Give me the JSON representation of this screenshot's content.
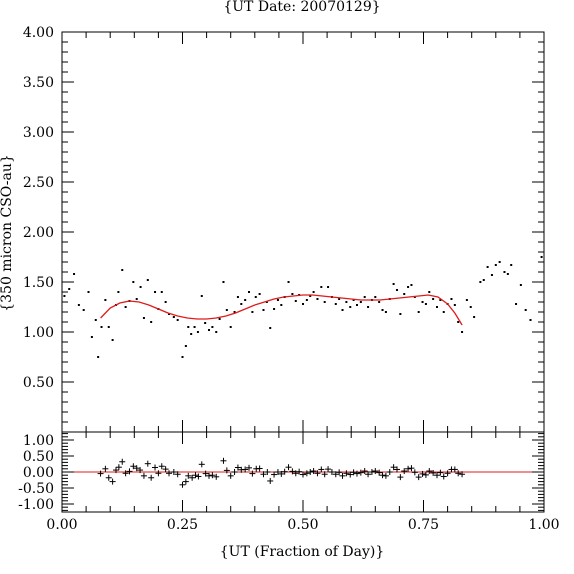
{
  "chart_data": {
    "type": "scatter",
    "title": "{UT Date: 20070129}",
    "xlabel": "{UT (Fraction of Day)}",
    "ylabel": "{350 micron CSO-au}",
    "xlim": [
      0,
      1
    ],
    "top_panel": {
      "ylim": [
        0.0,
        4.0
      ],
      "yticks": [
        "0.50",
        "1.00",
        "1.50",
        "2.00",
        "2.50",
        "3.00",
        "3.50",
        "4.00"
      ],
      "points": [
        [
          0.005,
          1.36
        ],
        [
          0.015,
          1.43
        ],
        [
          0.025,
          1.58
        ],
        [
          0.035,
          1.27
        ],
        [
          0.045,
          1.22
        ],
        [
          0.055,
          1.4
        ],
        [
          0.062,
          0.95
        ],
        [
          0.07,
          1.12
        ],
        [
          0.075,
          0.75
        ],
        [
          0.082,
          1.05
        ],
        [
          0.09,
          1.32
        ],
        [
          0.097,
          1.05
        ],
        [
          0.105,
          0.92
        ],
        [
          0.112,
          1.27
        ],
        [
          0.117,
          1.4
        ],
        [
          0.125,
          1.62
        ],
        [
          0.132,
          1.25
        ],
        [
          0.14,
          1.31
        ],
        [
          0.148,
          1.5
        ],
        [
          0.155,
          1.33
        ],
        [
          0.163,
          1.45
        ],
        [
          0.17,
          1.14
        ],
        [
          0.178,
          1.52
        ],
        [
          0.185,
          1.1
        ],
        [
          0.193,
          1.4
        ],
        [
          0.2,
          1.23
        ],
        [
          0.207,
          1.4
        ],
        [
          0.215,
          1.3
        ],
        [
          0.222,
          1.18
        ],
        [
          0.232,
          1.15
        ],
        [
          0.24,
          1.12
        ],
        [
          0.25,
          0.75
        ],
        [
          0.257,
          0.86
        ],
        [
          0.262,
          1.05
        ],
        [
          0.268,
          0.98
        ],
        [
          0.275,
          1.05
        ],
        [
          0.282,
          1.0
        ],
        [
          0.29,
          1.36
        ],
        [
          0.297,
          1.09
        ],
        [
          0.305,
          1.02
        ],
        [
          0.312,
          1.05
        ],
        [
          0.32,
          1.0
        ],
        [
          0.327,
          1.13
        ],
        [
          0.335,
          1.5
        ],
        [
          0.342,
          1.22
        ],
        [
          0.35,
          1.05
        ],
        [
          0.358,
          1.2
        ],
        [
          0.365,
          1.35
        ],
        [
          0.372,
          1.28
        ],
        [
          0.38,
          1.32
        ],
        [
          0.388,
          1.4
        ],
        [
          0.395,
          1.2
        ],
        [
          0.402,
          1.35
        ],
        [
          0.41,
          1.38
        ],
        [
          0.418,
          1.22
        ],
        [
          0.425,
          1.3
        ],
        [
          0.432,
          1.04
        ],
        [
          0.44,
          1.23
        ],
        [
          0.448,
          1.32
        ],
        [
          0.455,
          1.27
        ],
        [
          0.462,
          1.35
        ],
        [
          0.47,
          1.5
        ],
        [
          0.478,
          1.38
        ],
        [
          0.485,
          1.31
        ],
        [
          0.492,
          1.37
        ],
        [
          0.5,
          1.28
        ],
        [
          0.508,
          1.32
        ],
        [
          0.515,
          1.36
        ],
        [
          0.522,
          1.4
        ],
        [
          0.53,
          1.33
        ],
        [
          0.538,
          1.45
        ],
        [
          0.545,
          1.3
        ],
        [
          0.552,
          1.45
        ],
        [
          0.56,
          1.35
        ],
        [
          0.568,
          1.28
        ],
        [
          0.575,
          1.33
        ],
        [
          0.582,
          1.22
        ],
        [
          0.59,
          1.3
        ],
        [
          0.598,
          1.25
        ],
        [
          0.605,
          1.32
        ],
        [
          0.612,
          1.27
        ],
        [
          0.62,
          1.3
        ],
        [
          0.628,
          1.35
        ],
        [
          0.635,
          1.25
        ],
        [
          0.643,
          1.32
        ],
        [
          0.65,
          1.35
        ],
        [
          0.658,
          1.3
        ],
        [
          0.665,
          1.22
        ],
        [
          0.672,
          1.2
        ],
        [
          0.68,
          1.33
        ],
        [
          0.688,
          1.48
        ],
        [
          0.695,
          1.42
        ],
        [
          0.702,
          1.18
        ],
        [
          0.71,
          1.38
        ],
        [
          0.718,
          1.45
        ],
        [
          0.725,
          1.47
        ],
        [
          0.732,
          1.35
        ],
        [
          0.74,
          1.2
        ],
        [
          0.748,
          1.3
        ],
        [
          0.755,
          1.28
        ],
        [
          0.762,
          1.4
        ],
        [
          0.77,
          1.33
        ],
        [
          0.778,
          1.25
        ],
        [
          0.785,
          1.32
        ],
        [
          0.792,
          1.2
        ],
        [
          0.8,
          1.28
        ],
        [
          0.808,
          1.33
        ],
        [
          0.815,
          1.27
        ],
        [
          0.822,
          1.1
        ],
        [
          0.83,
          1.0
        ],
        [
          0.84,
          1.32
        ],
        [
          0.848,
          1.25
        ],
        [
          0.855,
          1.15
        ],
        [
          0.868,
          1.5
        ],
        [
          0.875,
          1.52
        ],
        [
          0.883,
          1.65
        ],
        [
          0.892,
          1.57
        ],
        [
          0.9,
          1.67
        ],
        [
          0.908,
          1.7
        ],
        [
          0.918,
          1.6
        ],
        [
          0.925,
          1.58
        ],
        [
          0.932,
          1.67
        ],
        [
          0.942,
          1.28
        ],
        [
          0.952,
          1.47
        ],
        [
          0.962,
          1.22
        ],
        [
          0.972,
          1.12
        ],
        [
          0.995,
          1.75
        ]
      ],
      "fit_curve": {
        "color": "#e01b1b",
        "x": [
          0.08,
          0.1,
          0.12,
          0.14,
          0.16,
          0.18,
          0.2,
          0.22,
          0.24,
          0.26,
          0.28,
          0.3,
          0.32,
          0.34,
          0.36,
          0.38,
          0.4,
          0.42,
          0.44,
          0.46,
          0.48,
          0.5,
          0.52,
          0.54,
          0.56,
          0.58,
          0.6,
          0.62,
          0.64,
          0.66,
          0.68,
          0.7,
          0.72,
          0.74,
          0.76,
          0.78,
          0.8,
          0.815,
          0.83
        ],
        "y": [
          1.14,
          1.24,
          1.29,
          1.31,
          1.3,
          1.27,
          1.23,
          1.19,
          1.16,
          1.14,
          1.13,
          1.13,
          1.14,
          1.16,
          1.19,
          1.23,
          1.27,
          1.3,
          1.33,
          1.35,
          1.36,
          1.37,
          1.37,
          1.36,
          1.35,
          1.34,
          1.33,
          1.32,
          1.32,
          1.32,
          1.33,
          1.34,
          1.35,
          1.36,
          1.37,
          1.35,
          1.28,
          1.19,
          1.07
        ]
      }
    },
    "bottom_panel": {
      "ylim": [
        -1.25,
        1.25
      ],
      "yticks": [
        "-1.00",
        "-0.50",
        "0.00",
        "0.50",
        "1.00"
      ],
      "zero_line_color": "#e01b1b",
      "residuals": [
        [
          0.08,
          -0.05
        ],
        [
          0.09,
          0.1
        ],
        [
          0.097,
          -0.18
        ],
        [
          0.105,
          -0.3
        ],
        [
          0.112,
          0.06
        ],
        [
          0.118,
          0.15
        ],
        [
          0.125,
          0.32
        ],
        [
          0.132,
          -0.04
        ],
        [
          0.14,
          0.02
        ],
        [
          0.148,
          0.18
        ],
        [
          0.155,
          0.12
        ],
        [
          0.162,
          0.06
        ],
        [
          0.17,
          -0.12
        ],
        [
          0.178,
          0.26
        ],
        [
          0.185,
          -0.18
        ],
        [
          0.193,
          0.14
        ],
        [
          0.2,
          -0.04
        ],
        [
          0.207,
          0.18
        ],
        [
          0.215,
          0.09
        ],
        [
          0.222,
          -0.04
        ],
        [
          0.232,
          0.0
        ],
        [
          0.24,
          -0.07
        ],
        [
          0.25,
          -0.4
        ],
        [
          0.257,
          -0.3
        ],
        [
          0.262,
          -0.12
        ],
        [
          0.27,
          -0.18
        ],
        [
          0.277,
          -0.1
        ],
        [
          0.283,
          -0.14
        ],
        [
          0.29,
          0.24
        ],
        [
          0.298,
          -0.05
        ],
        [
          0.305,
          -0.12
        ],
        [
          0.312,
          -0.1
        ],
        [
          0.32,
          -0.15
        ],
        [
          0.335,
          0.35
        ],
        [
          0.342,
          0.05
        ],
        [
          0.35,
          -0.12
        ],
        [
          0.358,
          0.0
        ],
        [
          0.365,
          0.14
        ],
        [
          0.372,
          0.07
        ],
        [
          0.38,
          0.08
        ],
        [
          0.388,
          0.13
        ],
        [
          0.395,
          -0.05
        ],
        [
          0.403,
          0.1
        ],
        [
          0.41,
          0.11
        ],
        [
          0.418,
          -0.07
        ],
        [
          0.426,
          0.0
        ],
        [
          0.432,
          -0.28
        ],
        [
          0.44,
          -0.08
        ],
        [
          0.448,
          0.0
        ],
        [
          0.455,
          -0.06
        ],
        [
          0.462,
          0.01
        ],
        [
          0.47,
          0.15
        ],
        [
          0.478,
          0.02
        ],
        [
          0.485,
          -0.04
        ],
        [
          0.492,
          0.01
        ],
        [
          0.5,
          -0.08
        ],
        [
          0.508,
          -0.04
        ],
        [
          0.515,
          0.0
        ],
        [
          0.522,
          0.03
        ],
        [
          0.53,
          -0.04
        ],
        [
          0.538,
          0.08
        ],
        [
          0.545,
          -0.07
        ],
        [
          0.552,
          0.09
        ],
        [
          0.56,
          0.0
        ],
        [
          0.568,
          -0.07
        ],
        [
          0.575,
          -0.01
        ],
        [
          0.582,
          -0.12
        ],
        [
          0.59,
          -0.04
        ],
        [
          0.598,
          -0.08
        ],
        [
          0.605,
          -0.01
        ],
        [
          0.612,
          -0.05
        ],
        [
          0.62,
          -0.02
        ],
        [
          0.628,
          0.03
        ],
        [
          0.635,
          -0.07
        ],
        [
          0.643,
          0.0
        ],
        [
          0.65,
          0.03
        ],
        [
          0.658,
          -0.02
        ],
        [
          0.665,
          -0.1
        ],
        [
          0.672,
          -0.12
        ],
        [
          0.68,
          0.0
        ],
        [
          0.688,
          0.15
        ],
        [
          0.695,
          0.08
        ],
        [
          0.702,
          -0.16
        ],
        [
          0.71,
          0.03
        ],
        [
          0.718,
          0.1
        ],
        [
          0.725,
          0.12
        ],
        [
          0.732,
          -0.01
        ],
        [
          0.74,
          -0.16
        ],
        [
          0.748,
          -0.06
        ],
        [
          0.755,
          -0.09
        ],
        [
          0.762,
          0.03
        ],
        [
          0.77,
          -0.03
        ],
        [
          0.778,
          -0.1
        ],
        [
          0.785,
          -0.02
        ],
        [
          0.792,
          -0.14
        ],
        [
          0.8,
          -0.04
        ],
        [
          0.808,
          0.08
        ],
        [
          0.815,
          0.08
        ],
        [
          0.822,
          -0.04
        ],
        [
          0.83,
          -0.07
        ]
      ]
    }
  }
}
